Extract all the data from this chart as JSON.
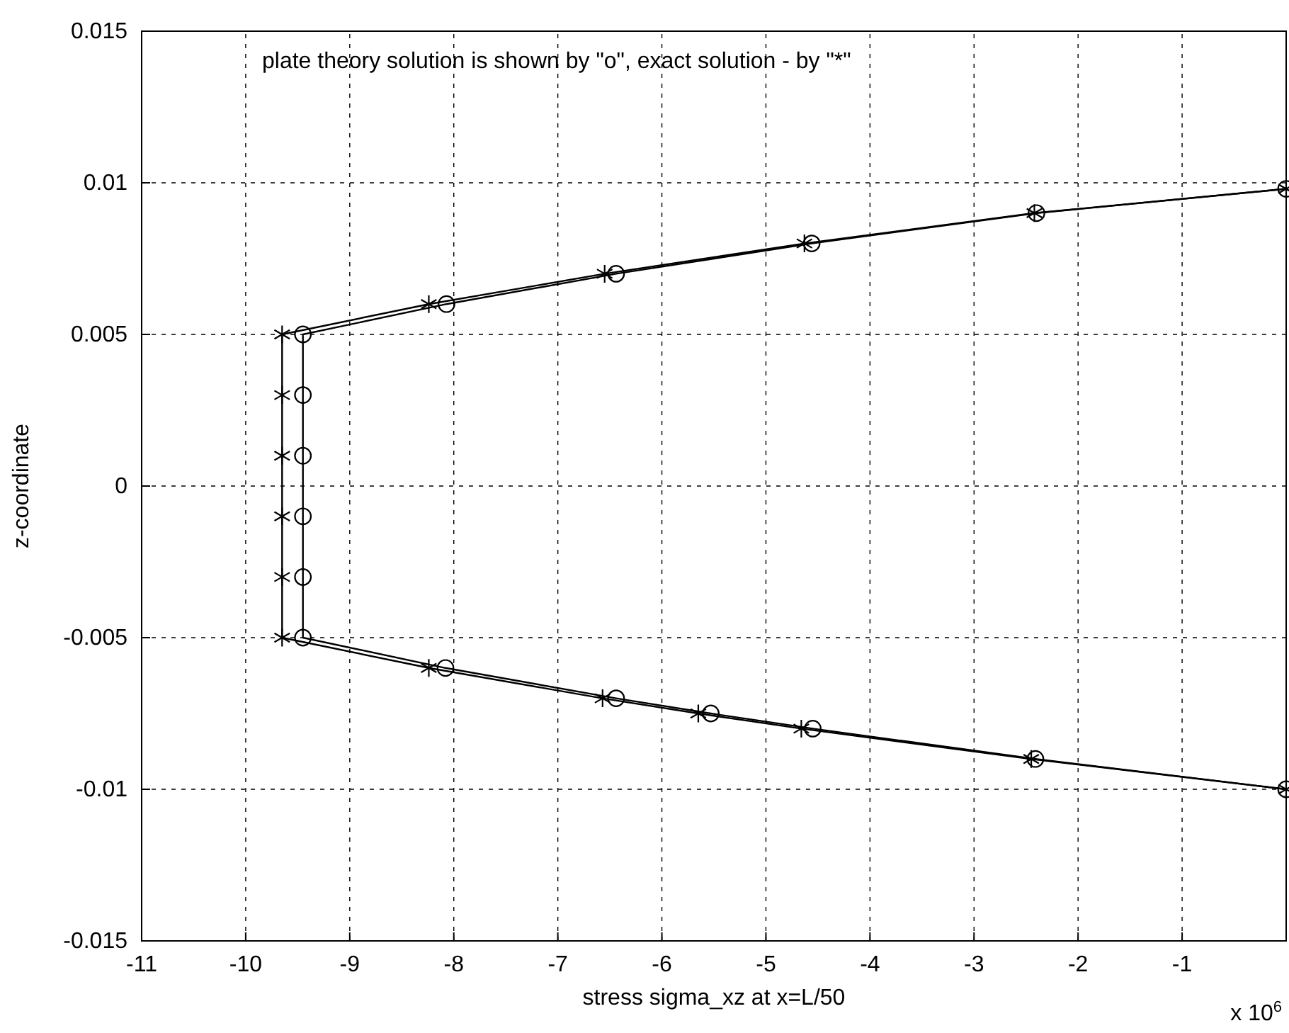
{
  "chart_data": {
    "type": "line",
    "xlabel": "stress sigma_xz  at  x=L/50",
    "ylabel": "z-coordinate",
    "annotations": [
      "plate theory solution is shown by \"o\", exact solution - by \"*\"",
      "x 10$^{6}$"
    ],
    "xlim": [
      -11,
      0
    ],
    "xticks": [
      -11,
      -10,
      -9,
      -8,
      -7,
      -6,
      -5,
      -4,
      -3,
      -2,
      -1
    ],
    "ylim": [
      -0.015,
      0.015
    ],
    "yticks": [
      -0.015,
      -0.01,
      -0.005,
      0,
      0.005,
      0.01,
      0.015
    ],
    "grid": true,
    "line_style": "solid",
    "series": [
      {
        "color": "#000000",
        "marker": "cross",
        "x": [
          0,
          -2.45,
          -4.66,
          -5.65,
          -6.57,
          -8.24,
          -9.65,
          -9.65,
          -9.65,
          -9.65,
          -9.65,
          -9.65,
          -8.24,
          -6.55,
          -4.63,
          -2.42,
          0
        ],
        "values": [
          -0.01,
          -0.009,
          -0.008,
          -0.0075,
          -0.007,
          -0.006,
          -0.005,
          -0.003,
          -0.001,
          0.001,
          0.003,
          0.005,
          0.006,
          0.007,
          0.008,
          0.009,
          0.0098
        ]
      },
      {
        "color": "#000000",
        "marker": "circle",
        "x": [
          0,
          -2.41,
          -4.55,
          -5.53,
          -6.44,
          -8.08,
          -9.45,
          -9.45,
          -9.45,
          -9.45,
          -9.45,
          -9.45,
          -8.07,
          -6.44,
          -4.56,
          -2.4,
          0
        ],
        "values": [
          -0.01,
          -0.009,
          -0.008,
          -0.0075,
          -0.007,
          -0.006,
          -0.005,
          -0.003,
          -0.001,
          0.001,
          0.003,
          0.005,
          0.006,
          0.007,
          0.008,
          0.009,
          0.0098
        ]
      }
    ]
  }
}
